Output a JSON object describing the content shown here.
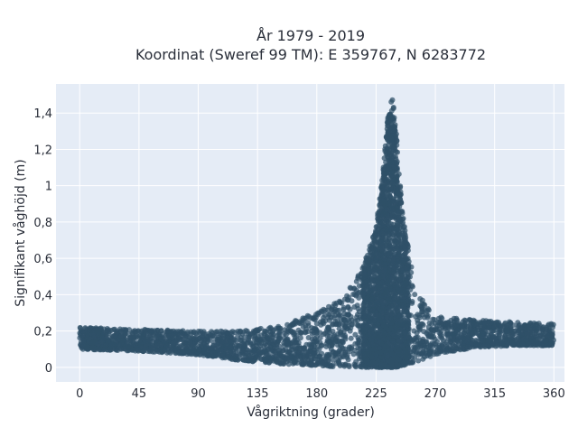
{
  "chart_data": {
    "type": "scatter",
    "title": "År 1979 - 2019",
    "subtitle": "Koordinat (Sweref 99 TM): E 359767, N 6283772",
    "xlabel": "Vågriktning (grader)",
    "ylabel": "Signifikant våghöjd (m)",
    "xlim": [
      -18,
      368
    ],
    "ylim": [
      -0.08,
      1.56
    ],
    "xticks": [
      0,
      45,
      90,
      135,
      180,
      225,
      270,
      315,
      360
    ],
    "xtick_labels": [
      "0",
      "45",
      "90",
      "135",
      "180",
      "225",
      "270",
      "315",
      "360"
    ],
    "yticks": [
      0,
      0.2,
      0.4,
      0.6,
      0.8,
      1.0,
      1.2,
      1.4
    ],
    "ytick_labels": [
      "0",
      "0,2",
      "0,4",
      "0,6",
      "0,8",
      "1",
      "1,2",
      "1,4"
    ],
    "grid": true,
    "legend": "none",
    "marker_color": "#2f5168",
    "background_color": "#e5ecf6",
    "envelope": {
      "x": [
        0,
        45,
        90,
        120,
        150,
        180,
        200,
        215,
        225,
        230,
        234,
        237,
        240,
        245,
        255,
        270,
        300,
        330,
        360
      ],
      "y_min": [
        0.1,
        0.09,
        0.07,
        0.04,
        0.02,
        0.01,
        0.0,
        0.0,
        0.0,
        0.0,
        0.0,
        0.0,
        0.0,
        0.01,
        0.03,
        0.07,
        0.11,
        0.12,
        0.12
      ],
      "y_max": [
        0.22,
        0.21,
        0.2,
        0.2,
        0.23,
        0.3,
        0.38,
        0.55,
        0.78,
        1.05,
        1.4,
        1.49,
        1.35,
        0.85,
        0.42,
        0.28,
        0.26,
        0.25,
        0.24
      ]
    }
  }
}
